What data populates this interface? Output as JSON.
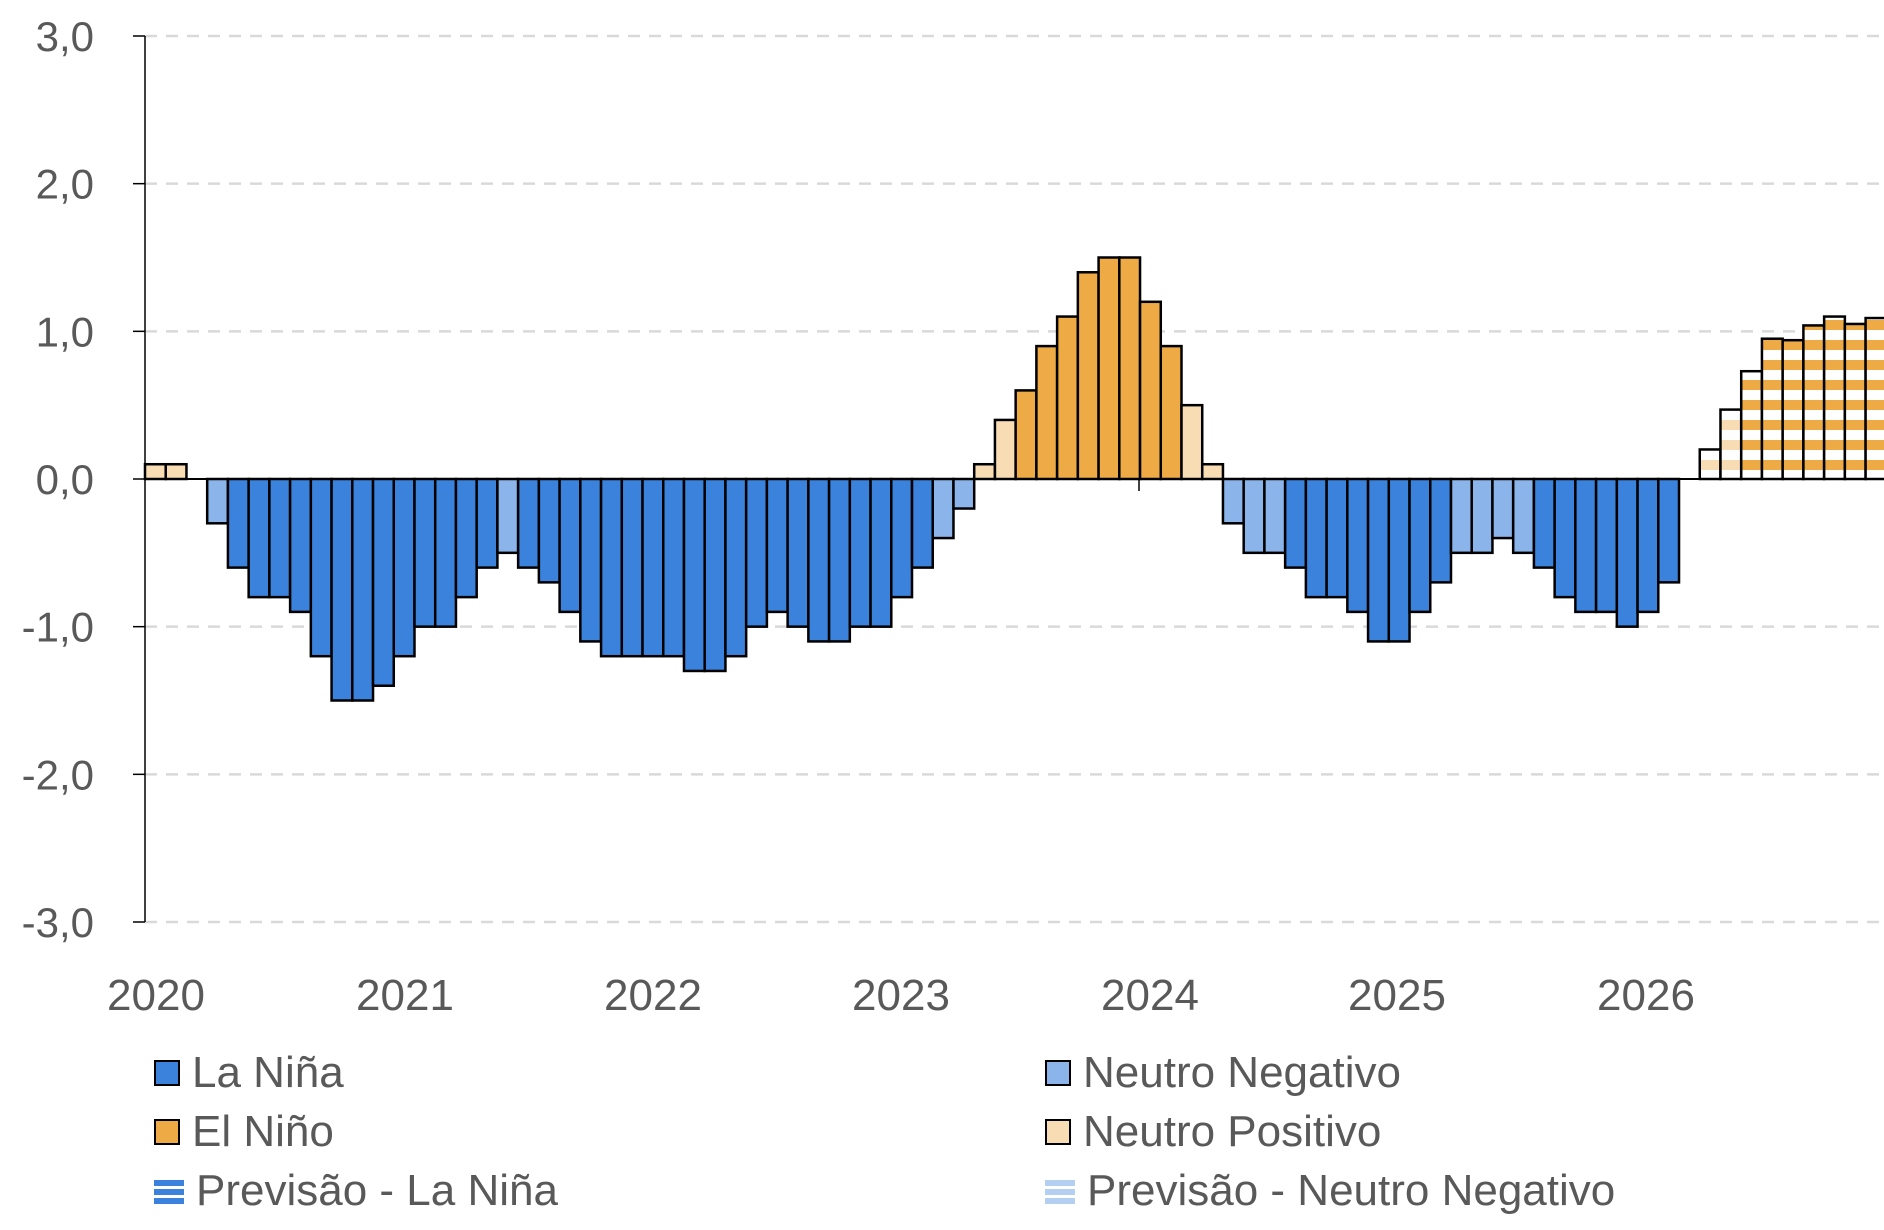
{
  "chart_data": {
    "type": "bar",
    "title": "",
    "xlabel": "",
    "ylabel": "",
    "ylim": [
      -3.0,
      3.0
    ],
    "yticks": [
      "3,0",
      "2,0",
      "1,0",
      "0,0",
      "-1,0",
      "-2,0",
      "-3,0"
    ],
    "ytick_values": [
      3,
      2,
      1,
      0,
      -1,
      -2,
      -3
    ],
    "xtick_labels": [
      "2020",
      "2021",
      "2022",
      "2023",
      "2024",
      "2025",
      "2026"
    ],
    "grid": "horizontal dashed",
    "frequency": "monthly, starting Jan 2020",
    "values": [
      0.1,
      0.1,
      0,
      -0.3,
      -0.6,
      -0.8,
      -0.8,
      -0.9,
      -1.2,
      -1.5,
      -1.5,
      -1.4,
      -1.2,
      -1.0,
      -1.0,
      -0.8,
      -0.6,
      -0.5,
      -0.6,
      -0.7,
      -0.9,
      -1.1,
      -1.2,
      -1.2,
      -1.2,
      -1.2,
      -1.3,
      -1.3,
      -1.2,
      -1.0,
      -0.9,
      -1.0,
      -1.1,
      -1.1,
      -1.0,
      -1.0,
      -0.8,
      -0.6,
      -0.4,
      -0.2,
      0.1,
      0.4,
      0.6,
      0.9,
      1.1,
      1.4,
      1.5,
      1.5,
      1.2,
      0.9,
      0.5,
      0.1,
      -0.3,
      -0.5,
      -0.5,
      -0.6,
      -0.8,
      -0.8,
      -0.9,
      -1.1,
      -1.1,
      -0.9,
      -0.7,
      -0.5,
      -0.5,
      -0.4,
      -0.5,
      -0.6,
      -0.8,
      -0.9,
      -0.9,
      -1.0,
      -0.9,
      -0.7,
      0,
      0.2,
      0.47,
      0.73,
      0.95,
      0.94,
      1.04,
      1.1,
      1.05,
      1.09
    ],
    "classes": [
      "NP",
      "NP",
      "NP",
      "NN",
      "LN",
      "LN",
      "LN",
      "LN",
      "LN",
      "LN",
      "LN",
      "LN",
      "LN",
      "LN",
      "LN",
      "LN",
      "LN",
      "NN",
      "LN",
      "LN",
      "LN",
      "LN",
      "LN",
      "LN",
      "LN",
      "LN",
      "LN",
      "LN",
      "LN",
      "LN",
      "LN",
      "LN",
      "LN",
      "LN",
      "LN",
      "LN",
      "LN",
      "LN",
      "NN",
      "NN",
      "NP",
      "NP",
      "EN",
      "EN",
      "EN",
      "EN",
      "EN",
      "EN",
      "EN",
      "EN",
      "NP",
      "NP",
      "NN",
      "NN",
      "NN",
      "LN",
      "LN",
      "LN",
      "LN",
      "LN",
      "LN",
      "LN",
      "LN",
      "NN",
      "NN",
      "NN",
      "NN",
      "LN",
      "LN",
      "LN",
      "LN",
      "LN",
      "LN",
      "LN",
      "NP",
      "FNP",
      "FNP",
      "FEN",
      "FEN",
      "FEN",
      "FEN",
      "FEN",
      "FEN",
      "FEN"
    ],
    "legend": {
      "placement": "bottom",
      "items": [
        {
          "key": "LN",
          "label": "La Niña",
          "color": "#3a82dc",
          "style": "solid"
        },
        {
          "key": "NN",
          "label": "Neutro Negativo",
          "color": "#8ab4ea",
          "style": "solid"
        },
        {
          "key": "EN",
          "label": "El Niño",
          "color": "#eeaa45",
          "style": "solid"
        },
        {
          "key": "NP",
          "label": "Neutro Positivo",
          "color": "#f8dcb4",
          "style": "solid"
        },
        {
          "key": "FLN",
          "label": "Previsão - La Niña",
          "color": "#3a82dc",
          "style": "striped"
        },
        {
          "key": "FNN",
          "label": "Previsão - Neutro Negativo",
          "color": "#b4cff2",
          "style": "striped"
        }
      ]
    }
  }
}
